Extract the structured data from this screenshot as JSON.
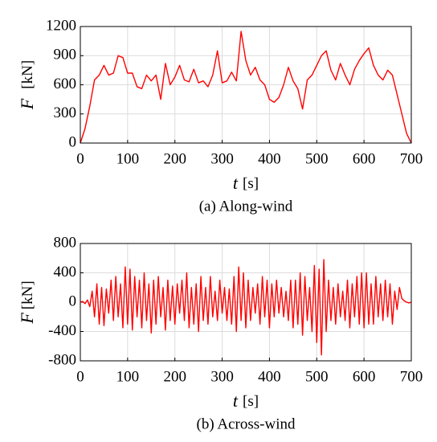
{
  "chart_data": [
    {
      "type": "line",
      "caption": "(a) Along-wind",
      "xlabel": {
        "symbol": "t",
        "unit": "[s]"
      },
      "ylabel": {
        "symbol": "F",
        "unit": "[kN]"
      },
      "color": "#ff0000",
      "grid": true,
      "xlim": [
        0,
        700
      ],
      "xticks": [
        0,
        100,
        200,
        300,
        400,
        500,
        600,
        700
      ],
      "ylim": [
        0,
        1200
      ],
      "yticks": [
        0,
        300,
        600,
        900,
        1200
      ],
      "x": [
        0,
        10,
        20,
        30,
        40,
        50,
        60,
        70,
        80,
        90,
        100,
        110,
        120,
        130,
        140,
        150,
        160,
        170,
        180,
        190,
        200,
        210,
        220,
        230,
        240,
        250,
        260,
        270,
        280,
        290,
        300,
        310,
        320,
        330,
        340,
        350,
        360,
        370,
        380,
        390,
        400,
        410,
        420,
        430,
        440,
        450,
        460,
        470,
        480,
        490,
        500,
        510,
        520,
        530,
        540,
        550,
        560,
        570,
        580,
        590,
        600,
        610,
        620,
        630,
        640,
        650,
        660,
        670,
        680,
        690,
        700
      ],
      "values": [
        0,
        150,
        380,
        650,
        700,
        800,
        700,
        720,
        900,
        880,
        720,
        720,
        580,
        560,
        700,
        640,
        700,
        450,
        820,
        600,
        680,
        800,
        650,
        630,
        760,
        620,
        640,
        580,
        700,
        950,
        620,
        640,
        730,
        640,
        1150,
        850,
        700,
        780,
        650,
        600,
        450,
        420,
        470,
        600,
        780,
        640,
        560,
        350,
        650,
        700,
        800,
        900,
        950,
        750,
        650,
        820,
        700,
        600,
        760,
        850,
        920,
        980,
        800,
        700,
        650,
        750,
        700,
        500,
        300,
        100,
        0
      ]
    },
    {
      "type": "line",
      "caption": "(b) Across-wind",
      "xlabel": {
        "symbol": "t",
        "unit": "[s]"
      },
      "ylabel": {
        "symbol": "F",
        "unit": "[kN]"
      },
      "color": "#ff0000",
      "grid": true,
      "xlim": [
        0,
        700
      ],
      "xticks": [
        0,
        100,
        200,
        300,
        400,
        500,
        600,
        700
      ],
      "ylim": [
        -800,
        800
      ],
      "yticks": [
        -800,
        -400,
        0,
        400,
        800
      ],
      "x": [
        0,
        5,
        10,
        15,
        20,
        25,
        30,
        35,
        40,
        45,
        50,
        55,
        60,
        65,
        70,
        75,
        80,
        85,
        90,
        95,
        100,
        105,
        110,
        115,
        120,
        125,
        130,
        135,
        140,
        145,
        150,
        155,
        160,
        165,
        170,
        175,
        180,
        185,
        190,
        195,
        200,
        205,
        210,
        215,
        220,
        225,
        230,
        235,
        240,
        245,
        250,
        255,
        260,
        265,
        270,
        275,
        280,
        285,
        290,
        295,
        300,
        305,
        310,
        315,
        320,
        325,
        330,
        335,
        340,
        345,
        350,
        355,
        360,
        365,
        370,
        375,
        380,
        385,
        390,
        395,
        400,
        405,
        410,
        415,
        420,
        425,
        430,
        435,
        440,
        445,
        450,
        455,
        460,
        465,
        470,
        475,
        480,
        485,
        490,
        495,
        500,
        505,
        510,
        515,
        520,
        525,
        530,
        535,
        540,
        545,
        550,
        555,
        560,
        565,
        570,
        575,
        580,
        585,
        590,
        595,
        600,
        605,
        610,
        615,
        620,
        625,
        630,
        635,
        640,
        645,
        650,
        655,
        660,
        665,
        670,
        675,
        680,
        685,
        690,
        695,
        700
      ],
      "values": [
        0,
        10,
        -20,
        30,
        -60,
        150,
        -200,
        250,
        -300,
        200,
        -320,
        180,
        -150,
        300,
        -250,
        350,
        -200,
        250,
        -350,
        480,
        -300,
        450,
        -380,
        350,
        -200,
        300,
        -350,
        400,
        -250,
        250,
        -420,
        300,
        -300,
        350,
        -200,
        200,
        -380,
        300,
        -250,
        220,
        -300,
        250,
        -150,
        300,
        -250,
        400,
        -350,
        200,
        -300,
        250,
        -400,
        350,
        -250,
        200,
        -300,
        350,
        -200,
        150,
        -250,
        300,
        -150,
        200,
        -250,
        180,
        -300,
        350,
        -400,
        480,
        -250,
        400,
        -350,
        300,
        -250,
        200,
        -150,
        250,
        -300,
        350,
        -200,
        300,
        -350,
        250,
        -200,
        300,
        -150,
        200,
        -200,
        150,
        -250,
        300,
        -350,
        300,
        -300,
        400,
        -450,
        350,
        -250,
        200,
        -400,
        500,
        -550,
        450,
        -720,
        580,
        -400,
        300,
        -250,
        200,
        -300,
        250,
        -200,
        150,
        -250,
        300,
        -350,
        250,
        -200,
        350,
        -300,
        400,
        -350,
        400,
        -300,
        250,
        -300,
        350,
        -200,
        250,
        -250,
        300,
        -200,
        250,
        -300,
        150,
        -100,
        200,
        50,
        20,
        0,
        -10,
        0
      ]
    }
  ]
}
